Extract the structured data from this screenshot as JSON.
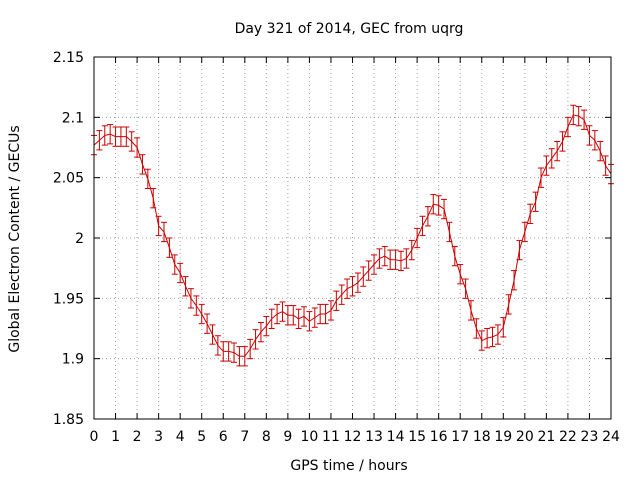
{
  "chart_data": {
    "type": "line",
    "title": "Day 321 of 2014, GEC from uqrg",
    "xlabel": "GPS time / hours",
    "ylabel": "Global Electron Content / GECUs",
    "xlim": [
      0,
      24
    ],
    "ylim": [
      1.85,
      2.15
    ],
    "grid": true,
    "xticks": [
      "0",
      "1",
      "2",
      "3",
      "4",
      "5",
      "6",
      "7",
      "8",
      "9",
      "10",
      "11",
      "12",
      "13",
      "14",
      "15",
      "16",
      "17",
      "18",
      "19",
      "20",
      "21",
      "22",
      "23",
      "24"
    ],
    "yticks": [
      "1.85",
      "1.9",
      "1.95",
      "2",
      "2.05",
      "2.1",
      "2.15"
    ],
    "series": [
      {
        "color": "#cc0000",
        "error": 0.008,
        "x": [
          0,
          0.25,
          0.5,
          0.75,
          1,
          1.25,
          1.5,
          1.75,
          2,
          2.25,
          2.5,
          2.75,
          3,
          3.25,
          3.5,
          3.75,
          4,
          4.25,
          4.5,
          4.75,
          5,
          5.25,
          5.5,
          5.75,
          6,
          6.25,
          6.5,
          6.75,
          7,
          7.25,
          7.5,
          7.75,
          8,
          8.25,
          8.5,
          8.75,
          9,
          9.25,
          9.5,
          9.75,
          10,
          10.25,
          10.5,
          10.75,
          11,
          11.25,
          11.5,
          11.75,
          12,
          12.25,
          12.5,
          12.75,
          13,
          13.25,
          13.5,
          13.75,
          14,
          14.25,
          14.5,
          14.75,
          15,
          15.25,
          15.5,
          15.75,
          16,
          16.25,
          16.5,
          16.75,
          17,
          17.25,
          17.5,
          17.75,
          18,
          18.25,
          18.5,
          18.75,
          19,
          19.25,
          19.5,
          19.75,
          20,
          20.25,
          20.5,
          20.75,
          21,
          21.25,
          21.5,
          21.75,
          22,
          22.25,
          22.5,
          22.75,
          23,
          23.25,
          23.5,
          23.75,
          24
        ],
        "y": [
          2.077,
          2.081,
          2.085,
          2.086,
          2.084,
          2.084,
          2.084,
          2.08,
          2.075,
          2.061,
          2.049,
          2.033,
          2.01,
          2.005,
          1.992,
          1.978,
          1.971,
          1.96,
          1.95,
          1.944,
          1.937,
          1.929,
          1.92,
          1.911,
          1.906,
          1.906,
          1.905,
          1.902,
          1.902,
          1.908,
          1.916,
          1.922,
          1.927,
          1.933,
          1.937,
          1.939,
          1.936,
          1.936,
          1.933,
          1.935,
          1.931,
          1.934,
          1.937,
          1.937,
          1.94,
          1.948,
          1.953,
          1.958,
          1.96,
          1.963,
          1.968,
          1.973,
          1.978,
          1.983,
          1.985,
          1.982,
          1.982,
          1.981,
          1.983,
          1.99,
          2.0,
          2.01,
          2.018,
          2.028,
          2.027,
          2.024,
          2.005,
          1.985,
          1.97,
          1.958,
          1.94,
          1.925,
          1.915,
          1.917,
          1.918,
          1.92,
          1.926,
          1.945,
          1.965,
          1.99,
          2.005,
          2.02,
          2.03,
          2.05,
          2.06,
          2.066,
          2.072,
          2.08,
          2.092,
          2.102,
          2.101,
          2.098,
          2.085,
          2.081,
          2.072,
          2.06,
          2.053
        ]
      }
    ]
  }
}
